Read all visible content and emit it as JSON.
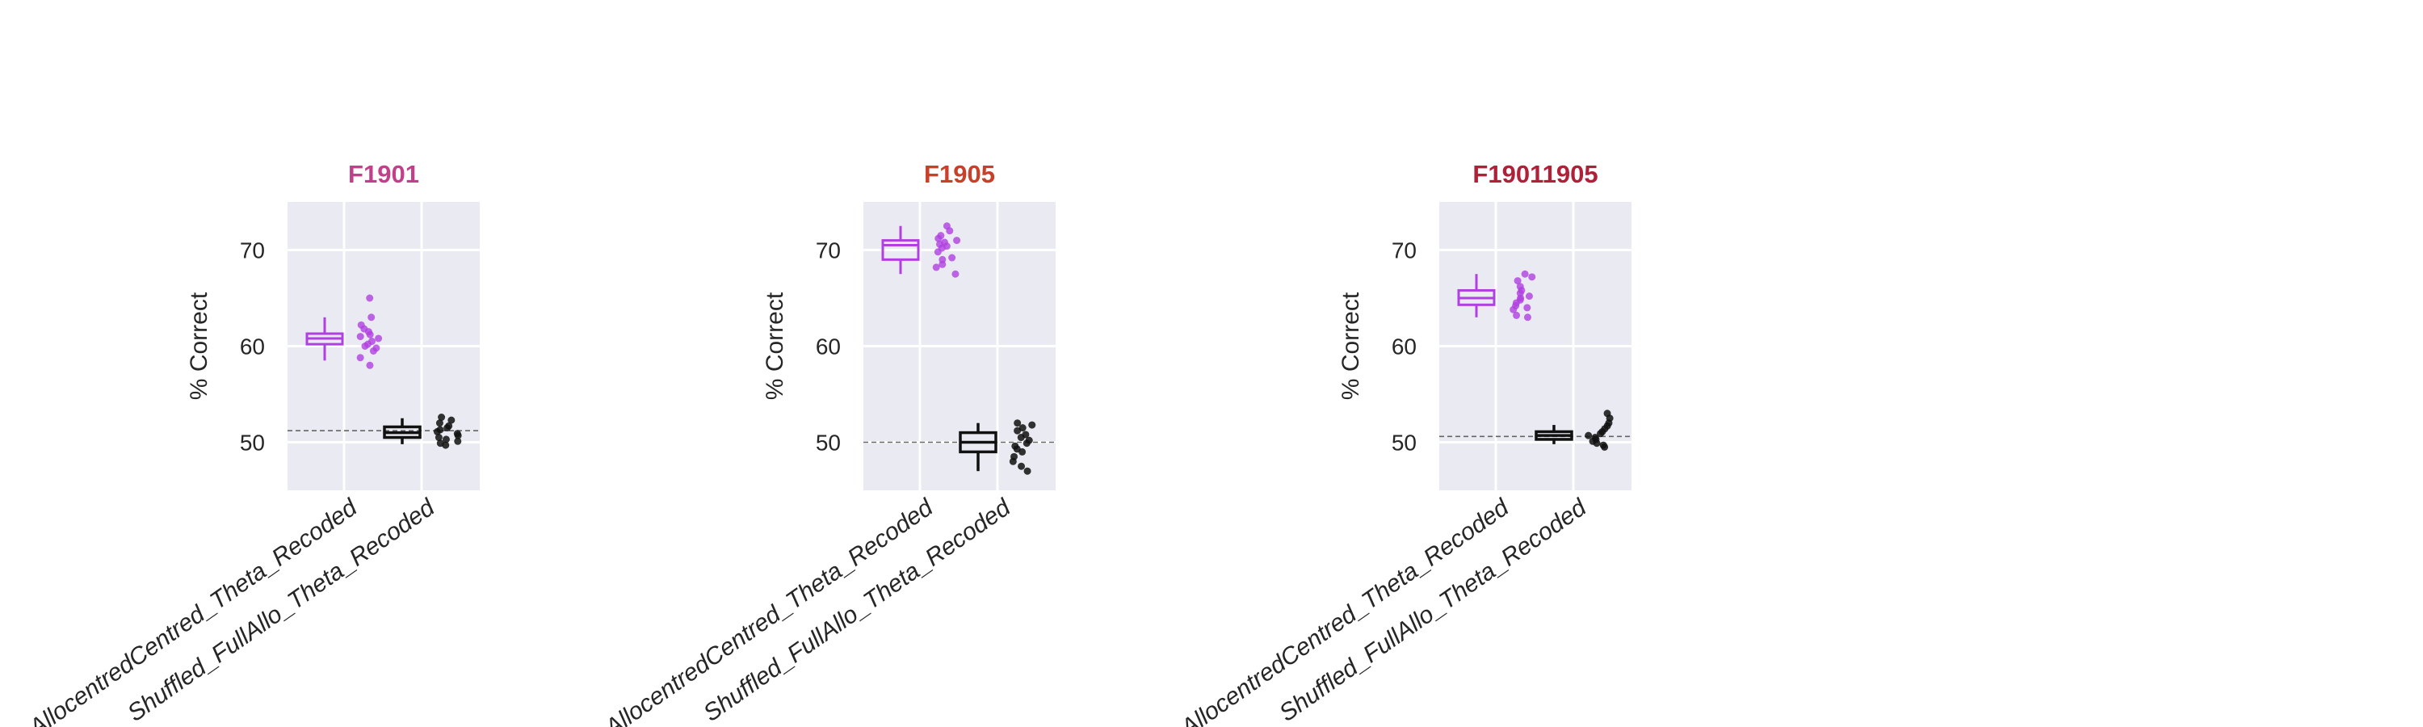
{
  "chart_data": [
    {
      "type": "box",
      "title": "F1901",
      "title_color": "#c2408a",
      "ylabel": "% Correct",
      "ylim": [
        45,
        75
      ],
      "yticks": [
        50,
        60,
        70
      ],
      "categories": [
        "AllocentredCentred_Theta_Recoded",
        "Shuffled_FullAllo_Theta_Recoded"
      ],
      "chance_level": 51.2,
      "grid": true,
      "series": [
        {
          "category": "AllocentredCentred_Theta_Recoded",
          "color": "#b040e0",
          "box": {
            "whisker_low": 58.5,
            "q1": 60.2,
            "median": 60.8,
            "q3": 61.3,
            "whisker_high": 63.0
          },
          "points": [
            65.0,
            63.0,
            62.2,
            61.8,
            61.5,
            61.2,
            61.0,
            60.8,
            60.5,
            60.2,
            60.0,
            59.8,
            59.5,
            58.8,
            58.0
          ]
        },
        {
          "category": "Shuffled_FullAllo_Theta_Recoded",
          "color": "#111111",
          "box": {
            "whisker_low": 49.8,
            "q1": 50.5,
            "median": 51.0,
            "q3": 51.6,
            "whisker_high": 52.5
          },
          "points": [
            52.6,
            52.3,
            52.0,
            51.7,
            51.5,
            51.3,
            51.1,
            50.9,
            50.7,
            50.5,
            50.3,
            50.1,
            49.9,
            49.7
          ]
        }
      ]
    },
    {
      "type": "box",
      "title": "F1905",
      "title_color": "#c8402a",
      "ylabel": "% Correct",
      "ylim": [
        45,
        75
      ],
      "yticks": [
        50,
        60,
        70
      ],
      "categories": [
        "AllocentredCentred_Theta_Recoded",
        "Shuffled_FullAllo_Theta_Recoded"
      ],
      "chance_level": 50.0,
      "grid": true,
      "series": [
        {
          "category": "AllocentredCentred_Theta_Recoded",
          "color": "#b040e0",
          "box": {
            "whisker_low": 67.5,
            "q1": 69.0,
            "median": 70.5,
            "q3": 71.0,
            "whisker_high": 72.5
          },
          "points": [
            72.5,
            72.0,
            71.5,
            71.2,
            71.0,
            70.8,
            70.6,
            70.4,
            70.2,
            69.8,
            69.2,
            69.0,
            68.5,
            68.2,
            67.5
          ]
        },
        {
          "category": "Shuffled_FullAllo_Theta_Recoded",
          "color": "#111111",
          "box": {
            "whisker_low": 47.0,
            "q1": 49.0,
            "median": 50.0,
            "q3": 51.0,
            "whisker_high": 52.0
          },
          "points": [
            52.0,
            51.8,
            51.5,
            51.2,
            50.8,
            50.5,
            50.2,
            49.9,
            49.6,
            49.3,
            49.0,
            48.5,
            48.0,
            47.5,
            47.0
          ]
        }
      ]
    },
    {
      "type": "box",
      "title": "F19011905",
      "title_color": "#b02038",
      "ylabel": "% Correct",
      "ylim": [
        45,
        75
      ],
      "yticks": [
        50,
        60,
        70
      ],
      "categories": [
        "AllocentredCentred_Theta_Recoded",
        "Shuffled_FullAllo_Theta_Recoded"
      ],
      "chance_level": 50.6,
      "grid": true,
      "series": [
        {
          "category": "AllocentredCentred_Theta_Recoded",
          "color": "#b040e0",
          "box": {
            "whisker_low": 63.0,
            "q1": 64.3,
            "median": 65.0,
            "q3": 65.8,
            "whisker_high": 67.5
          },
          "points": [
            67.5,
            67.2,
            66.8,
            66.2,
            65.8,
            65.5,
            65.2,
            65.0,
            64.8,
            64.5,
            64.2,
            64.0,
            63.8,
            63.2,
            63.0
          ]
        },
        {
          "category": "Shuffled_FullAllo_Theta_Recoded",
          "color": "#111111",
          "box": {
            "whisker_low": 49.8,
            "q1": 50.3,
            "median": 50.7,
            "q3": 51.1,
            "whisker_high": 51.8
          },
          "points": [
            53.0,
            52.5,
            52.0,
            51.7,
            51.4,
            51.1,
            50.9,
            50.7,
            50.5,
            50.3,
            50.1,
            49.9,
            49.7,
            49.5
          ]
        }
      ]
    }
  ]
}
